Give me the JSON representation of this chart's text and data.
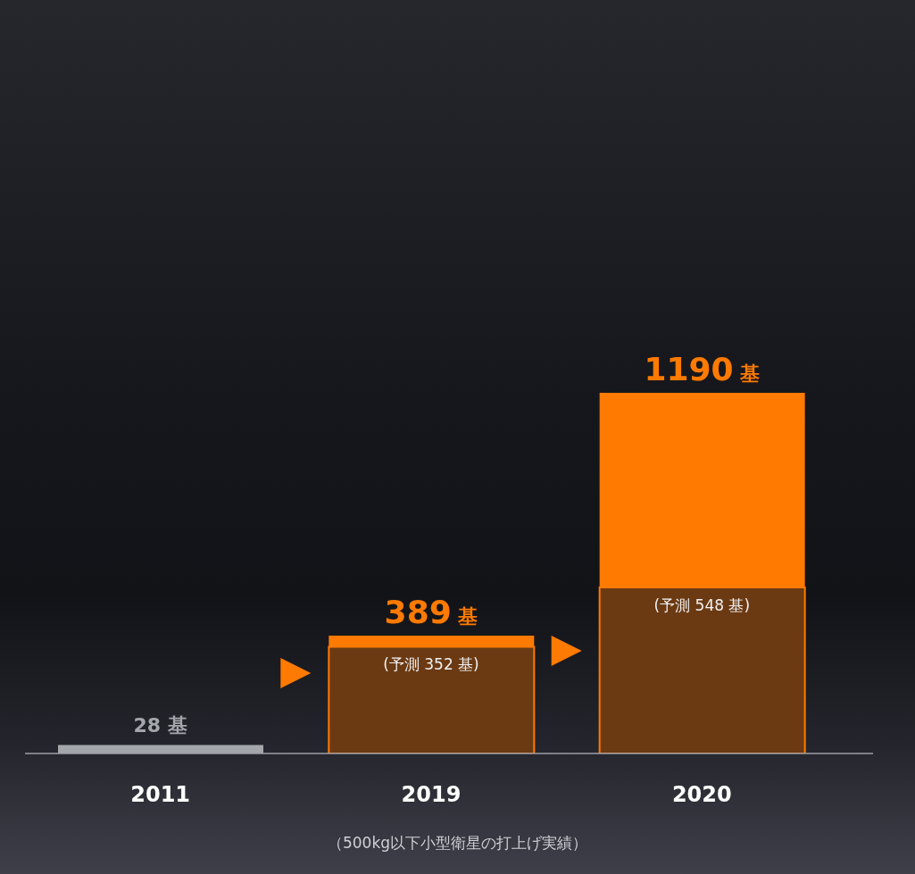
{
  "chart_data": {
    "type": "bar",
    "stacked": true,
    "categories": [
      "2011",
      "2019",
      "2020"
    ],
    "series": [
      {
        "color": "#6b3a12",
        "values": [
          null,
          352,
          548
        ],
        "value_labels": [
          null,
          "(予測 352 基)",
          "(予測 548 基)"
        ]
      },
      {
        "colors": [
          "#a3a7ac",
          "#ff7a00",
          "#ff7a00"
        ],
        "values": [
          28,
          37,
          642
        ]
      }
    ],
    "totals": [
      "28 基",
      "389 基",
      "1190 基"
    ],
    "annotations": [
      "（500kg以下小型衛星の打上げ実績）"
    ]
  }
}
